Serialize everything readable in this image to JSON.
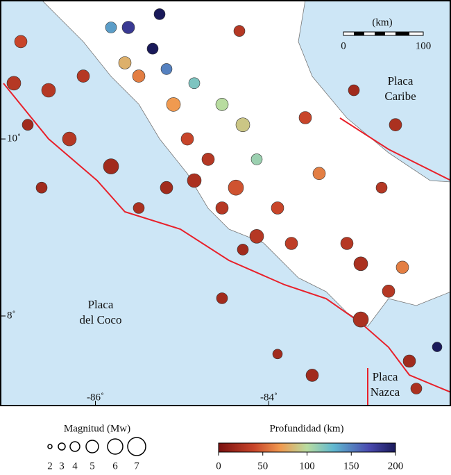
{
  "map": {
    "xlim": [
      -87.1,
      -81.9
    ],
    "ylim": [
      6.98,
      11.57
    ],
    "xticks": [
      {
        "value": -86,
        "label": "-86˚"
      },
      {
        "value": -84,
        "label": "-84˚"
      }
    ],
    "yticks": [
      {
        "value": 10,
        "label": "10˚"
      },
      {
        "value": 8,
        "label": "8˚"
      }
    ],
    "labels": [
      "Placa",
      "Caribe",
      "Placa",
      "del Coco",
      "Placa",
      "Nazca"
    ],
    "scale_bar": {
      "title": "(km)",
      "ticks": [
        0,
        100
      ]
    },
    "quakes": {
      "lon": [
        -86.86,
        -86.54,
        -86.14,
        -86.78,
        -85.82,
        -85.62,
        -85.34,
        -85.18,
        -85.5,
        -84.54,
        -84.3,
        -84.14,
        -84.7,
        -84.86,
        -84.38,
        -83.9,
        -84.14,
        -83.74,
        -83.1,
        -82.94,
        -82.62,
        -82.94,
        -82.38,
        -82.3,
        -83.02,
        -82.54,
        -82.7,
        -85.18,
        -85.82,
        -86.62,
        -84.54,
        -85.5,
        -84.3,
        -84.54,
        -83.5,
        -82.06,
        -83.9,
        -82.46,
        -83.42,
        -85.1,
        -85.66,
        -84.86,
        -85.26,
        -84.34,
        -86.94,
        -86.3,
        -83.58,
        -84.94
      ],
      "lat": [
        11.1,
        10.55,
        10.71,
        10.16,
        11.26,
        11.26,
        11.02,
        10.79,
        10.71,
        10.39,
        10.16,
        9.77,
        9.77,
        9.53,
        9.45,
        9.22,
        8.9,
        8.82,
        8.82,
        8.59,
        8.28,
        7.96,
        7.49,
        7.18,
        10.55,
        10.16,
        9.45,
        9.45,
        9.69,
        9.45,
        9.22,
        9.22,
        8.75,
        8.2,
        7.33,
        7.65,
        7.57,
        8.55,
        9.61,
        10.39,
        10.86,
        10.63,
        11.41,
        11.22,
        10.63,
        10.0,
        10.24,
        10.0
      ],
      "depth": [
        40,
        30,
        30,
        20,
        140,
        180,
        200,
        150,
        60,
        100,
        90,
        110,
        30,
        25,
        45,
        40,
        30,
        35,
        30,
        25,
        30,
        25,
        20,
        25,
        20,
        25,
        30,
        20,
        20,
        20,
        30,
        25,
        20,
        20,
        20,
        200,
        20,
        60,
        60,
        70,
        80,
        120,
        200,
        30,
        30,
        30,
        40,
        40
      ],
      "magnitude": [
        5,
        5.5,
        5,
        4.5,
        4.5,
        5,
        4.5,
        4.5,
        5,
        5,
        5.5,
        4.5,
        5,
        5.5,
        6,
        5,
        5.5,
        5,
        5,
        5.5,
        5,
        6,
        5,
        4.5,
        4.5,
        5,
        4.5,
        5,
        6,
        4.5,
        5,
        4.5,
        4.5,
        4.5,
        5,
        4,
        4,
        5,
        5,
        5.5,
        5,
        4.5,
        4.5,
        4.5,
        5.5,
        5.5,
        5,
        5
      ]
    }
  },
  "legend_magnitude": {
    "title": "Magnitud (Mw)",
    "values": [
      2,
      3,
      4,
      5,
      6,
      7
    ]
  },
  "legend_depth": {
    "title": "Profundidad (km)",
    "range": [
      0,
      200
    ],
    "ticks": [
      0,
      50,
      100,
      150,
      200
    ]
  }
}
